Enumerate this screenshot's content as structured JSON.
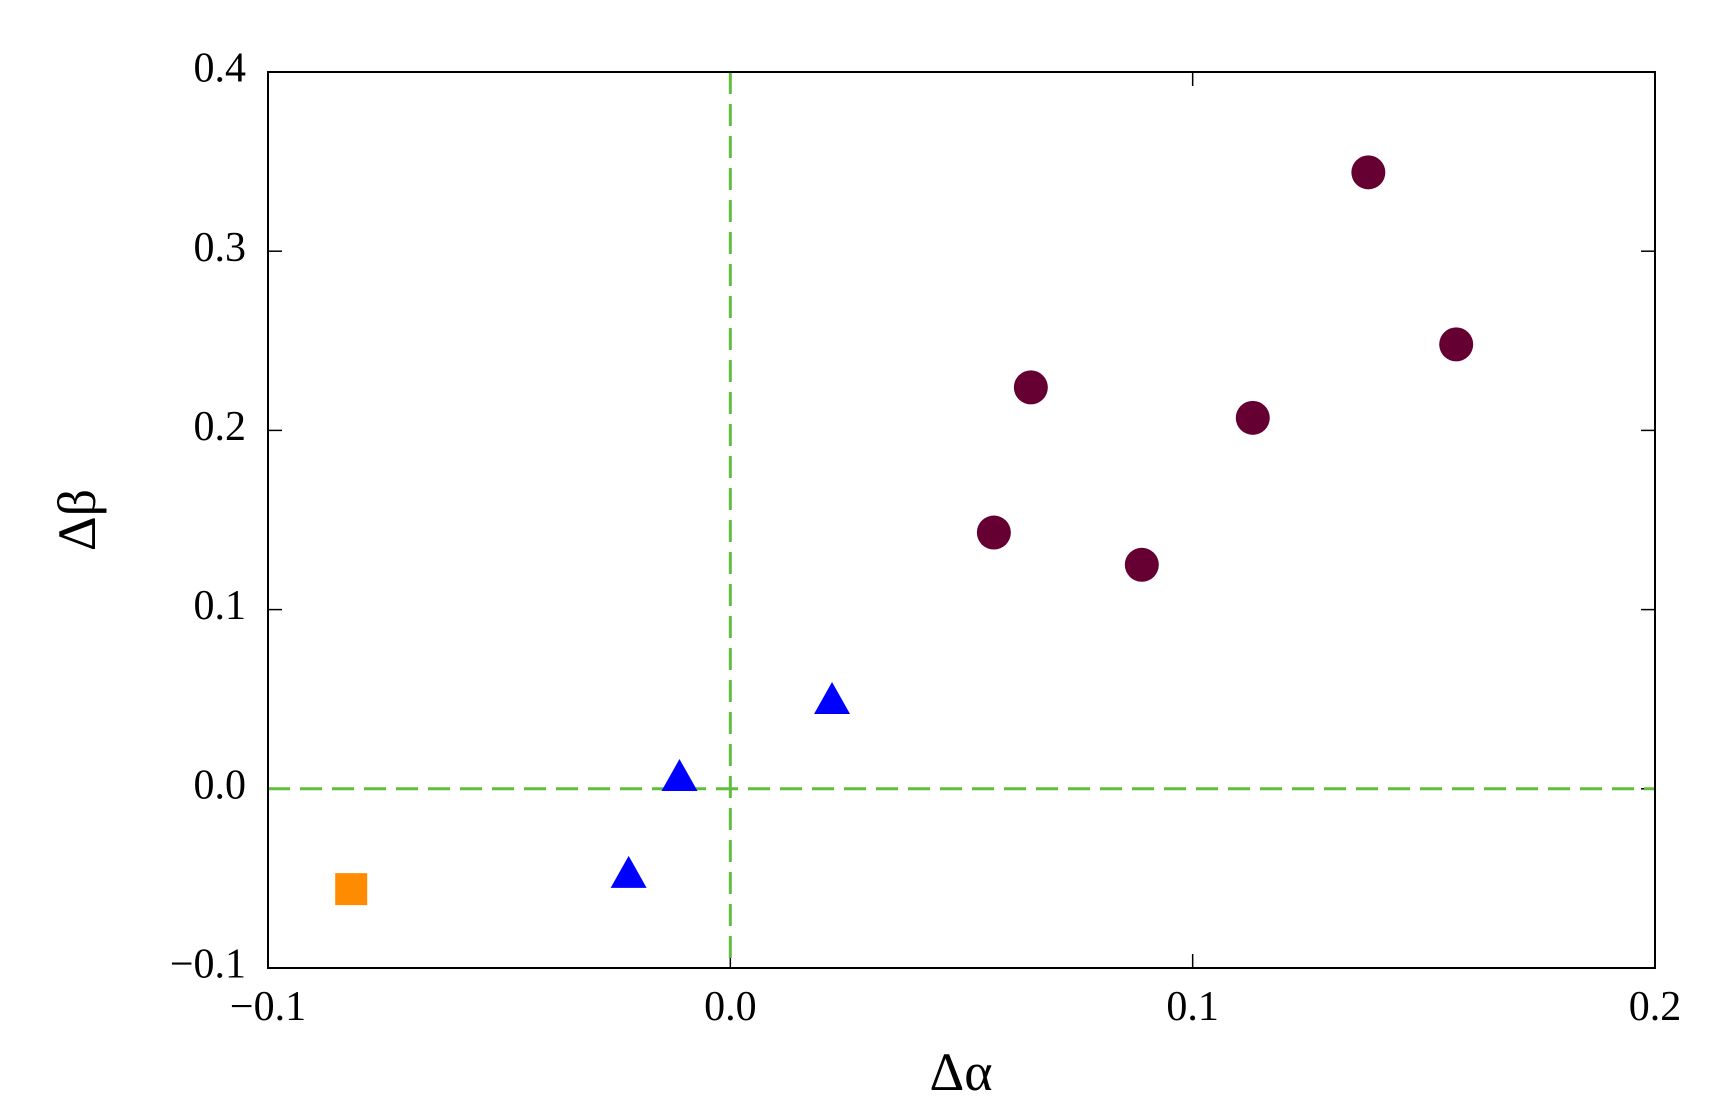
{
  "chart_data": {
    "type": "scatter",
    "xlabel": "Δα",
    "ylabel": "Δβ",
    "xlim": [
      -0.1,
      0.2
    ],
    "ylim": [
      -0.1,
      0.4
    ],
    "xticks": [
      {
        "value": -0.1,
        "label": "−0.1"
      },
      {
        "value": 0,
        "label": "0.0"
      },
      0.1,
      0.2
    ],
    "yticks": [
      {
        "value": -0.1,
        "label": "−0.1"
      },
      {
        "value": 0,
        "label": "0.0"
      },
      0.1,
      0.2,
      0.3,
      0.4
    ],
    "reference_lines": {
      "x": [
        0
      ],
      "y": [
        0
      ],
      "color": "#5fbf3c"
    },
    "series": [
      {
        "marker": "circle",
        "color": "#660033",
        "x": [
          0.138,
          0.157,
          0.065,
          0.113,
          0.057,
          0.089
        ],
        "values": [
          0.344,
          0.248,
          0.224,
          0.207,
          0.143,
          0.125
        ]
      },
      {
        "marker": "triangle",
        "color": "#0000ff",
        "x": [
          0.022,
          -0.011,
          -0.022
        ],
        "values": [
          0.049,
          0.006,
          -0.048
        ]
      },
      {
        "marker": "square",
        "color": "#ff8c00",
        "x": [
          -0.082
        ],
        "values": [
          -0.056
        ]
      }
    ]
  }
}
